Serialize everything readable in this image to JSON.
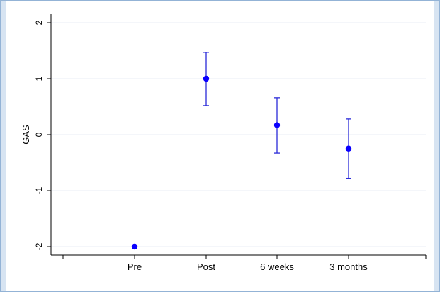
{
  "chart_data": {
    "type": "scatter",
    "title": "",
    "xlabel": "",
    "ylabel": "GAS",
    "categories": [
      "Pre",
      "Post",
      "6 weeks",
      "3 months"
    ],
    "ylim": [
      -2,
      2
    ],
    "yticks": [
      "2",
      "1",
      "0",
      "-1",
      "-2"
    ],
    "grid": true,
    "series": [
      {
        "values": [
          -2.0,
          1.0,
          0.17,
          -0.25
        ],
        "error_low": [
          null,
          0.52,
          -0.33,
          -0.78
        ],
        "error_high": [
          null,
          1.47,
          0.66,
          0.28
        ]
      }
    ],
    "colors": {
      "marker": "#0a00ff",
      "errorbar": "#2a2ad8",
      "grid": "#e8eef4",
      "axis": "#000000",
      "frame": "#93b3d6"
    }
  }
}
